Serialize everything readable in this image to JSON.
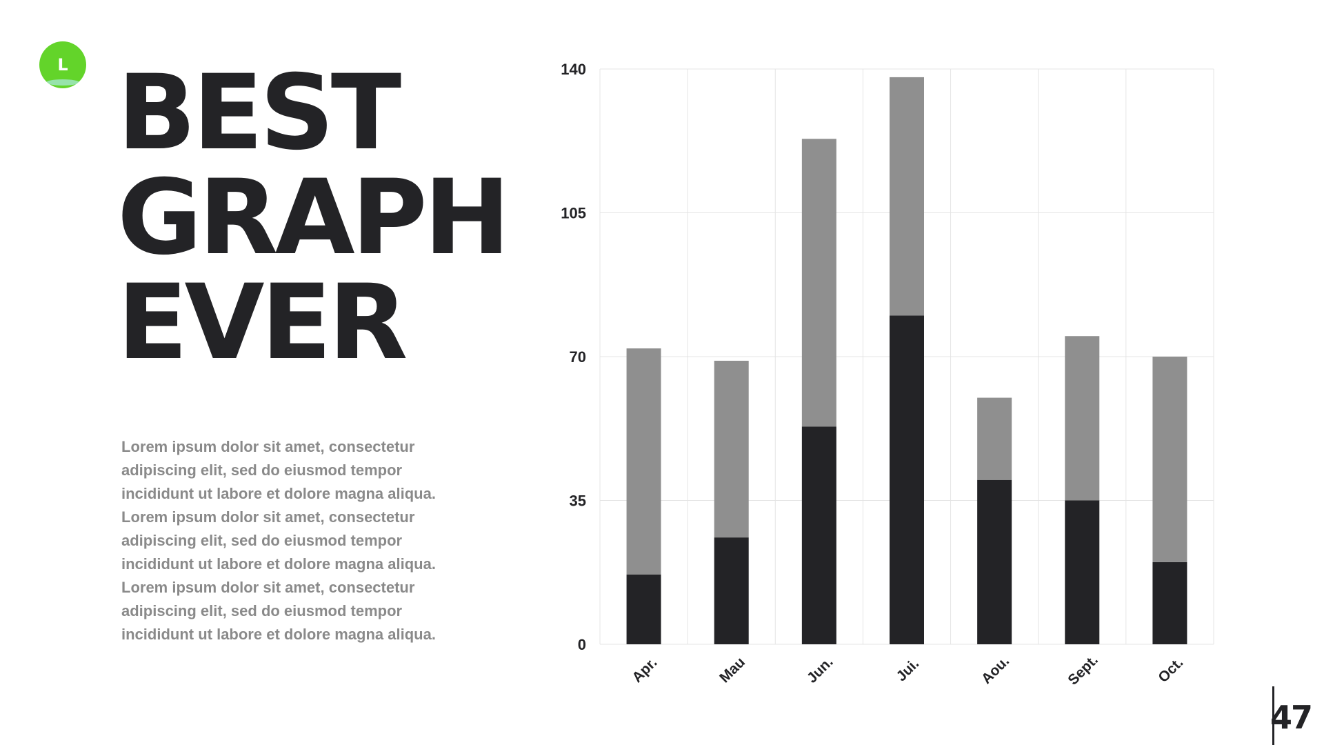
{
  "logo": {
    "letter": "L",
    "color": "#63d42a"
  },
  "title": {
    "line1": "BEST",
    "line2": "GRAPH",
    "line3": "EVER"
  },
  "body": {
    "paragraph1": "Lorem ipsum dolor sit amet, consectetur adipiscing elit, sed do eiusmod tempor incididunt ut labore et dolore magna aliqua.",
    "paragraph2": "Lorem ipsum dolor sit amet, consectetur adipiscing elit, sed do eiusmod tempor incididunt ut labore et dolore magna aliqua. Lorem ipsum dolor sit amet, consectetur adipiscing elit, sed do eiusmod tempor incididunt ut labore et dolore magna aliqua."
  },
  "page": {
    "number": "47"
  },
  "chart_data": {
    "type": "bar",
    "stacked": true,
    "categories": [
      "Apr.",
      "Mau",
      "Jun.",
      "Jui.",
      "Aou.",
      "Sept.",
      "Oct."
    ],
    "series": [
      {
        "values": [
          17,
          26,
          53,
          80,
          40,
          35,
          20
        ],
        "color": "#232326"
      },
      {
        "values": [
          55,
          43,
          70,
          58,
          20,
          40,
          50
        ],
        "color": "#8f8f8f"
      }
    ],
    "ylim": [
      0,
      140
    ],
    "yticks": [
      0,
      35,
      70,
      105,
      140
    ],
    "grid": true,
    "legend": "none"
  }
}
